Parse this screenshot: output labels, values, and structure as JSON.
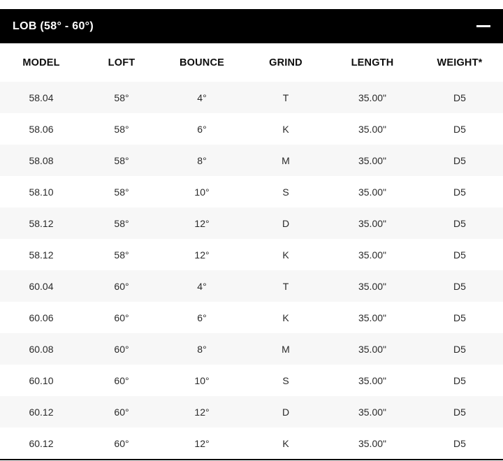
{
  "theme": {
    "bar_bg": "#000000",
    "bar_text": "#ffffff",
    "row_alt_bg": "#f7f7f7",
    "text_color": "#2a2a2a",
    "header_text": "#0d0d0d",
    "divider": "#000000"
  },
  "section": {
    "title": "LOB (58° - 60°)",
    "collapse_icon": "minus-icon",
    "state": "expanded"
  },
  "table": {
    "columns": [
      "MODEL",
      "LOFT",
      "BOUNCE",
      "GRIND",
      "LENGTH",
      "WEIGHT*"
    ],
    "rows": [
      [
        "58.04",
        "58°",
        "4°",
        "T",
        "35.00\"",
        "D5"
      ],
      [
        "58.06",
        "58°",
        "6°",
        "K",
        "35.00\"",
        "D5"
      ],
      [
        "58.08",
        "58°",
        "8°",
        "M",
        "35.00\"",
        "D5"
      ],
      [
        "58.10",
        "58°",
        "10°",
        "S",
        "35.00\"",
        "D5"
      ],
      [
        "58.12",
        "58°",
        "12°",
        "D",
        "35.00\"",
        "D5"
      ],
      [
        "58.12",
        "58°",
        "12°",
        "K",
        "35.00\"",
        "D5"
      ],
      [
        "60.04",
        "60°",
        "4°",
        "T",
        "35.00\"",
        "D5"
      ],
      [
        "60.06",
        "60°",
        "6°",
        "K",
        "35.00\"",
        "D5"
      ],
      [
        "60.08",
        "60°",
        "8°",
        "M",
        "35.00\"",
        "D5"
      ],
      [
        "60.10",
        "60°",
        "10°",
        "S",
        "35.00\"",
        "D5"
      ],
      [
        "60.12",
        "60°",
        "12°",
        "D",
        "35.00\"",
        "D5"
      ],
      [
        "60.12",
        "60°",
        "12°",
        "K",
        "35.00\"",
        "D5"
      ]
    ]
  }
}
